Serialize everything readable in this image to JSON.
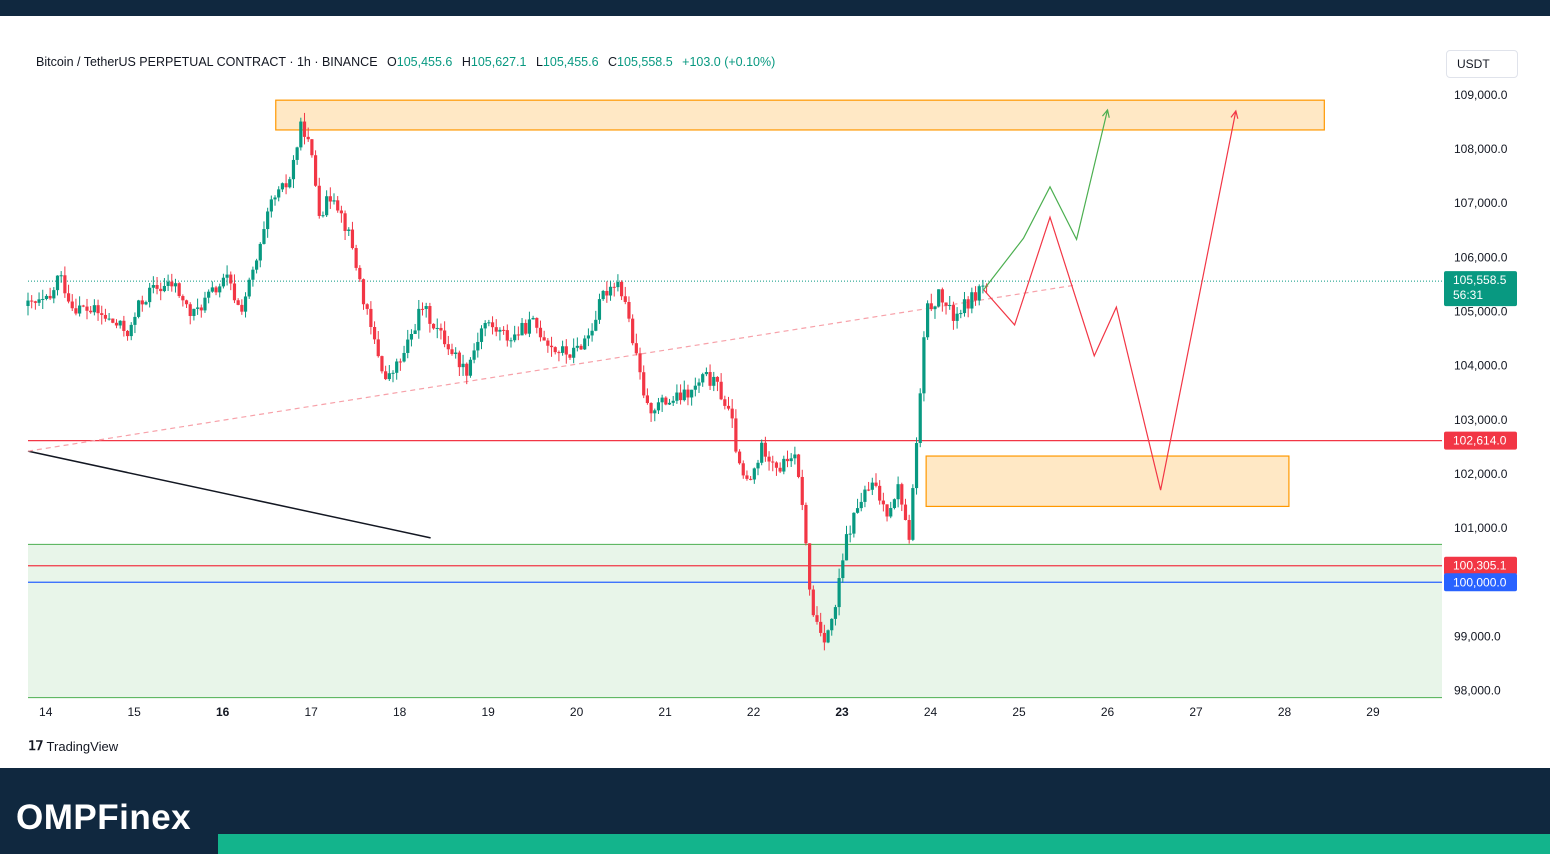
{
  "header": {
    "title": "Bitcoin / TetherUS PERPETUAL CONTRACT · 1h · BINANCE",
    "ohlc": [
      {
        "label": "O",
        "value": "105,455.6"
      },
      {
        "label": "H",
        "value": "105,627.1"
      },
      {
        "label": "L",
        "value": "105,455.6"
      },
      {
        "label": "C",
        "value": "105,558.5"
      }
    ],
    "change": "+103.0 (+0.10%)"
  },
  "currency": "USDT",
  "watermark": "TradingView",
  "brand": "OMPFinex",
  "colors": {
    "up": "#089981",
    "down": "#f23645",
    "zone_fill": "#ffe0b2",
    "zone_border": "#ff9800",
    "support_fill": "#e8f5e9",
    "support_border": "#4caf50",
    "blue": "#2962ff",
    "bear_path": "#f23645",
    "bull_path": "#4caf50",
    "brand_bg": "#10283f",
    "accent": "#13b48c"
  },
  "chart_data": {
    "type": "candlestick",
    "x_unit": "day (June, 1h candles)",
    "x_ticks": [
      {
        "label": "14",
        "x": 14
      },
      {
        "label": "15",
        "x": 15
      },
      {
        "label": "16",
        "x": 16,
        "bold": true
      },
      {
        "label": "17",
        "x": 17
      },
      {
        "label": "18",
        "x": 18
      },
      {
        "label": "19",
        "x": 19
      },
      {
        "label": "20",
        "x": 20
      },
      {
        "label": "21",
        "x": 21
      },
      {
        "label": "22",
        "x": 22
      },
      {
        "label": "23",
        "x": 23,
        "bold": true
      },
      {
        "label": "24",
        "x": 24
      },
      {
        "label": "25",
        "x": 25
      },
      {
        "label": "26",
        "x": 26
      },
      {
        "label": "27",
        "x": 27
      },
      {
        "label": "28",
        "x": 28
      },
      {
        "label": "29",
        "x": 29
      }
    ],
    "xlim": [
      13.8,
      29.78
    ],
    "ylim": [
      97900,
      109900
    ],
    "y_ticks": [
      {
        "label": "109,000.0",
        "value": 109000
      },
      {
        "label": "108,000.0",
        "value": 108000
      },
      {
        "label": "107,000.0",
        "value": 107000
      },
      {
        "label": "106,000.0",
        "value": 106000
      },
      {
        "label": "105,000.0",
        "value": 105000
      },
      {
        "label": "104,000.0",
        "value": 104000
      },
      {
        "label": "103,000.0",
        "value": 103000
      },
      {
        "label": "102,000.0",
        "value": 102000
      },
      {
        "label": "101,000.0",
        "value": 101000
      },
      {
        "label": "99,000.0",
        "value": 99000
      },
      {
        "label": "98,000.0",
        "value": 98000
      }
    ],
    "price_anchors": [
      [
        13.8,
        105100
      ],
      [
        14.05,
        105200
      ],
      [
        14.15,
        105700
      ],
      [
        14.3,
        105100
      ],
      [
        14.55,
        105000
      ],
      [
        14.75,
        104800
      ],
      [
        14.95,
        104600
      ],
      [
        15.05,
        105100
      ],
      [
        15.2,
        105400
      ],
      [
        15.45,
        105500
      ],
      [
        15.65,
        104900
      ],
      [
        15.85,
        105300
      ],
      [
        16.05,
        105600
      ],
      [
        16.2,
        105000
      ],
      [
        16.4,
        106000
      ],
      [
        16.55,
        107000
      ],
      [
        16.75,
        107400
      ],
      [
        16.9,
        108500
      ],
      [
        17.0,
        107900
      ],
      [
        17.1,
        106800
      ],
      [
        17.25,
        107200
      ],
      [
        17.45,
        106300
      ],
      [
        17.65,
        104800
      ],
      [
        17.85,
        103700
      ],
      [
        18.05,
        104200
      ],
      [
        18.25,
        105100
      ],
      [
        18.45,
        104600
      ],
      [
        18.75,
        103900
      ],
      [
        18.95,
        104800
      ],
      [
        19.25,
        104500
      ],
      [
        19.5,
        104800
      ],
      [
        19.75,
        104300
      ],
      [
        19.95,
        104200
      ],
      [
        20.15,
        104600
      ],
      [
        20.3,
        105300
      ],
      [
        20.45,
        105600
      ],
      [
        20.55,
        105200
      ],
      [
        20.65,
        104300
      ],
      [
        20.8,
        103200
      ],
      [
        20.95,
        103300
      ],
      [
        21.15,
        103400
      ],
      [
        21.3,
        103500
      ],
      [
        21.45,
        103800
      ],
      [
        21.6,
        103600
      ],
      [
        21.75,
        103000
      ],
      [
        21.85,
        102000
      ],
      [
        21.95,
        101800
      ],
      [
        22.1,
        102500
      ],
      [
        22.3,
        102100
      ],
      [
        22.45,
        102400
      ],
      [
        22.55,
        101500
      ],
      [
        22.65,
        99500
      ],
      [
        22.8,
        99000
      ],
      [
        22.9,
        99300
      ],
      [
        23.05,
        100800
      ],
      [
        23.2,
        101500
      ],
      [
        23.35,
        101800
      ],
      [
        23.5,
        101300
      ],
      [
        23.65,
        101800
      ],
      [
        23.75,
        100700
      ],
      [
        23.85,
        102700
      ],
      [
        23.95,
        105000
      ],
      [
        24.1,
        105300
      ],
      [
        24.25,
        104900
      ],
      [
        24.45,
        105200
      ],
      [
        24.65,
        105300
      ],
      [
        24.62,
        105560
      ]
    ],
    "current_price": {
      "value": 105558.5,
      "label": "105,558.5",
      "countdown": "56:31"
    },
    "zones": [
      {
        "x0": 16.6,
        "x1": 28.45,
        "y0": 108350,
        "y1": 108900
      },
      {
        "x0": 23.95,
        "x1": 28.05,
        "y0": 101400,
        "y1": 102330
      }
    ],
    "support_band": {
      "x0": 13.8,
      "x1": 29.78,
      "y0": 97870,
      "y1": 100700
    },
    "horizontal_lines": [
      {
        "value": 102614,
        "label": "102,614.0",
        "color": "#f23645"
      },
      {
        "value": 100305.1,
        "label": "100,305.1",
        "color": "#f23645"
      },
      {
        "value": 100000,
        "label": "100,000.0",
        "color": "#2962ff"
      }
    ],
    "trend_lines": [
      {
        "style": "solid",
        "color": "#131722",
        "points": [
          [
            13.8,
            102420
          ],
          [
            18.35,
            100820
          ]
        ]
      },
      {
        "style": "dashed",
        "color": "#f7a1a9",
        "points": [
          [
            13.8,
            102420
          ],
          [
            25.65,
            105490
          ]
        ]
      }
    ],
    "projections": [
      {
        "name": "bullish",
        "color": "#4caf50",
        "points": [
          [
            24.6,
            105400
          ],
          [
            25.05,
            106350
          ],
          [
            25.35,
            107300
          ],
          [
            25.65,
            106330
          ],
          [
            26.0,
            108720
          ]
        ]
      },
      {
        "name": "bearish",
        "color": "#f23645",
        "points": [
          [
            24.6,
            105400
          ],
          [
            24.95,
            104750
          ],
          [
            25.35,
            106740
          ],
          [
            25.85,
            104180
          ],
          [
            26.1,
            105080
          ],
          [
            26.6,
            101700
          ],
          [
            27.45,
            108700
          ]
        ]
      }
    ]
  }
}
